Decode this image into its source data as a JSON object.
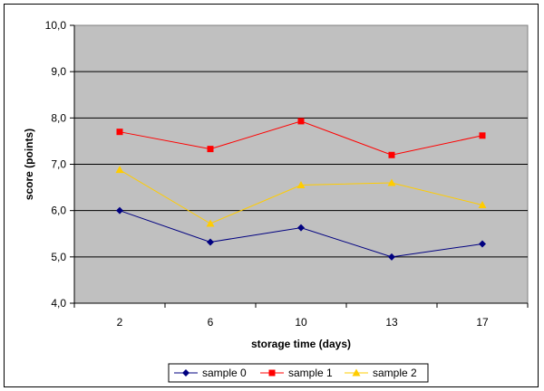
{
  "chart_data": {
    "type": "line",
    "categories": [
      "2",
      "6",
      "10",
      "13",
      "17"
    ],
    "series": [
      {
        "name": "sample 0",
        "values": [
          6.0,
          5.32,
          5.63,
          5.0,
          5.28
        ],
        "color": "#000080",
        "marker": "diamond"
      },
      {
        "name": "sample 1",
        "values": [
          7.7,
          7.33,
          7.93,
          7.2,
          7.62
        ],
        "color": "#ff0000",
        "marker": "square"
      },
      {
        "name": "sample 2",
        "values": [
          6.88,
          5.72,
          6.55,
          6.6,
          6.12
        ],
        "color": "#ffcc00",
        "marker": "triangle"
      }
    ],
    "title": "",
    "xlabel": "storage time (days)",
    "ylabel": "score (points)",
    "ylim": [
      4.0,
      10.0
    ],
    "yticks": [
      "4,0",
      "5,0",
      "6,0",
      "7,0",
      "8,0",
      "9,0",
      "10,0"
    ],
    "grid": true,
    "plot_background": "#c0c0c0",
    "legend_position": "bottom"
  }
}
